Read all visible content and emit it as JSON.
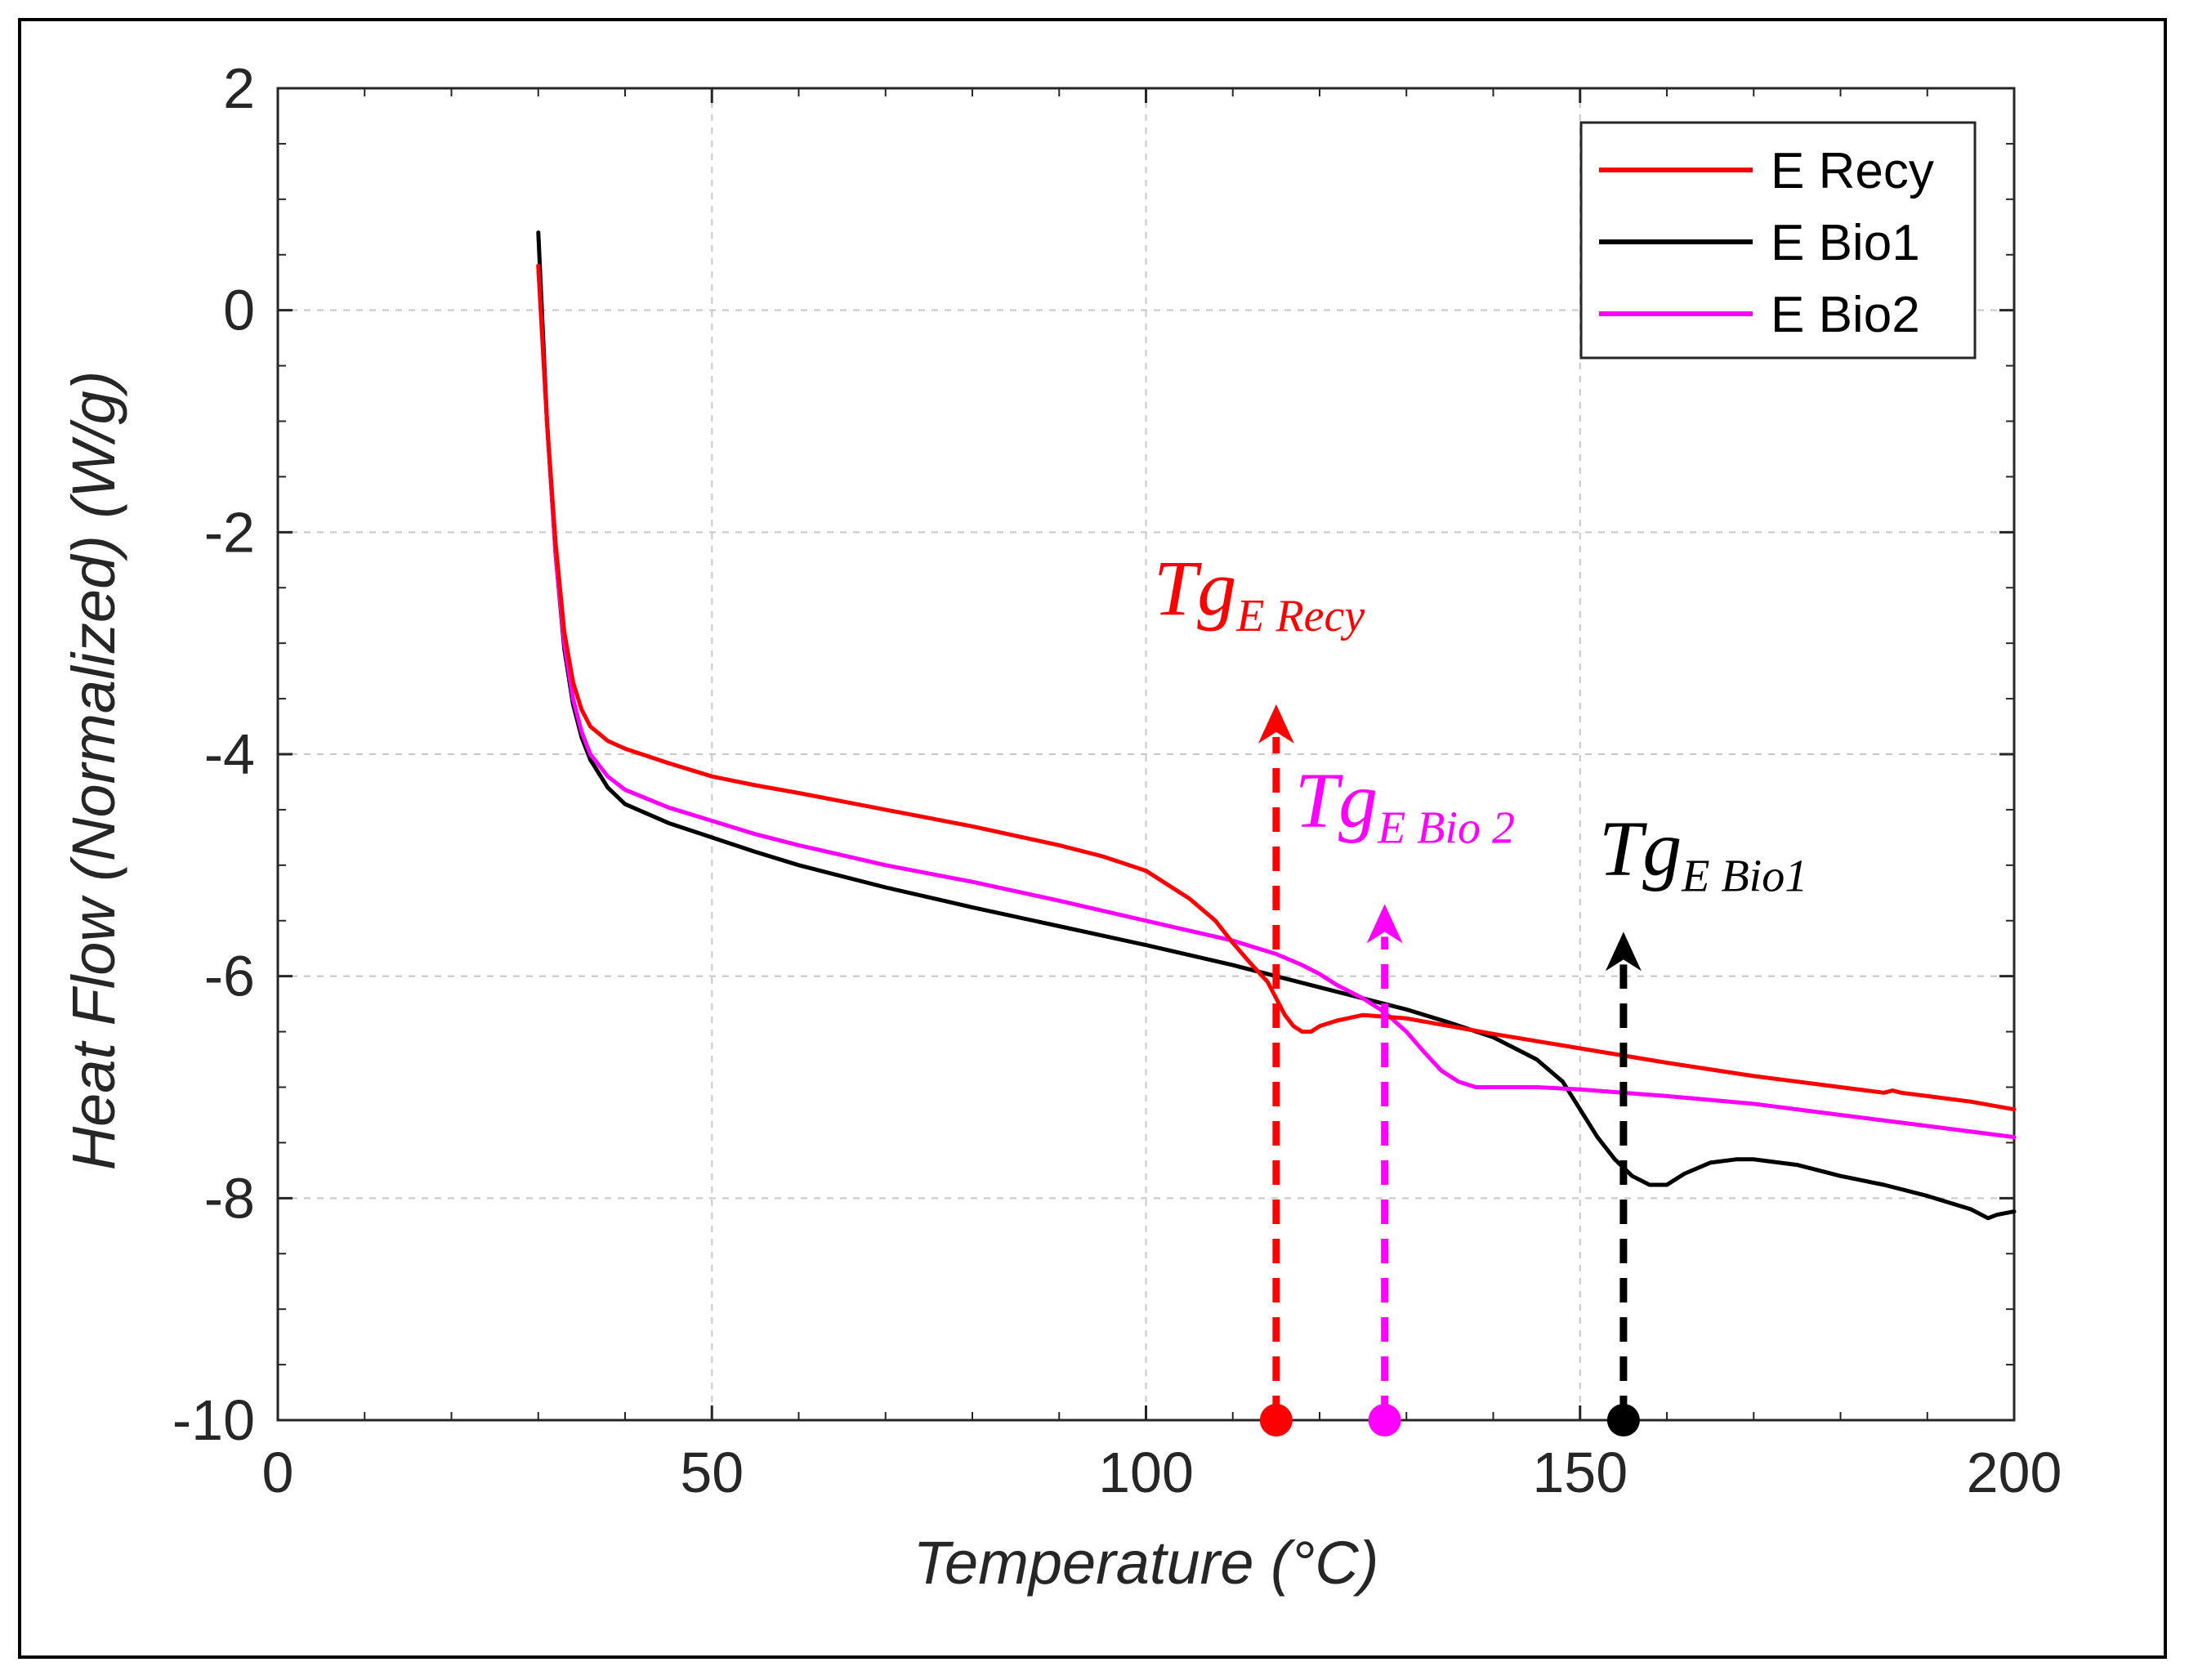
{
  "chart_data": {
    "type": "line",
    "title": "",
    "xlabel": "Temperature (°C)",
    "ylabel": "Heat Flow (Normalized) (W/g)",
    "xlim": [
      0,
      200
    ],
    "ylim": [
      -10,
      2
    ],
    "xticks": [
      0,
      50,
      100,
      150,
      200
    ],
    "yticks": [
      -10,
      -8,
      -6,
      -4,
      -2,
      0,
      2
    ],
    "xtick_labels": [
      "0",
      "50",
      "100",
      "150",
      "200"
    ],
    "ytick_labels": [
      "-10",
      "-8",
      "-6",
      "-4",
      "-2",
      "0",
      "2"
    ],
    "grid": true,
    "legend_position": "top-right",
    "series": [
      {
        "name": "E Recy",
        "color": "#ff0000",
        "x": [
          30,
          31,
          32,
          33,
          34,
          35,
          36,
          38,
          40,
          45,
          50,
          55,
          60,
          70,
          80,
          90,
          95,
          100,
          105,
          108,
          110,
          112,
          114,
          115,
          116,
          117,
          118,
          119,
          120,
          122,
          125,
          130,
          135,
          140,
          150,
          160,
          170,
          180,
          185,
          186,
          187,
          190,
          195,
          200
        ],
        "y": [
          0.4,
          -1.0,
          -2.1,
          -2.9,
          -3.35,
          -3.6,
          -3.75,
          -3.88,
          -3.95,
          -4.08,
          -4.2,
          -4.28,
          -4.35,
          -4.5,
          -4.65,
          -4.82,
          -4.92,
          -5.05,
          -5.3,
          -5.5,
          -5.7,
          -5.88,
          -6.05,
          -6.2,
          -6.35,
          -6.45,
          -6.5,
          -6.5,
          -6.45,
          -6.4,
          -6.35,
          -6.38,
          -6.45,
          -6.52,
          -6.65,
          -6.78,
          -6.9,
          -7.0,
          -7.05,
          -7.03,
          -7.05,
          -7.08,
          -7.13,
          -7.2
        ]
      },
      {
        "name": "E Bio1",
        "color": "#000000",
        "x": [
          30,
          31,
          32,
          33,
          34,
          35,
          36,
          38,
          40,
          45,
          50,
          55,
          60,
          70,
          80,
          90,
          100,
          110,
          115,
          120,
          125,
          130,
          135,
          140,
          145,
          148,
          150,
          152,
          154,
          156,
          158,
          160,
          162,
          165,
          168,
          170,
          175,
          180,
          185,
          190,
          195,
          197,
          198,
          200
        ],
        "y": [
          0.7,
          -1.0,
          -2.2,
          -3.05,
          -3.55,
          -3.85,
          -4.05,
          -4.3,
          -4.45,
          -4.62,
          -4.75,
          -4.88,
          -5.0,
          -5.2,
          -5.38,
          -5.55,
          -5.72,
          -5.9,
          -6.0,
          -6.1,
          -6.2,
          -6.3,
          -6.42,
          -6.55,
          -6.75,
          -6.95,
          -7.2,
          -7.45,
          -7.65,
          -7.8,
          -7.88,
          -7.88,
          -7.78,
          -7.68,
          -7.65,
          -7.65,
          -7.7,
          -7.8,
          -7.88,
          -7.98,
          -8.1,
          -8.18,
          -8.15,
          -8.12
        ]
      },
      {
        "name": "E Bio2",
        "color": "#ff00ff",
        "x": [
          30,
          31,
          32,
          33,
          34,
          35,
          36,
          38,
          40,
          45,
          50,
          55,
          60,
          70,
          80,
          90,
          100,
          110,
          115,
          118,
          120,
          122,
          125,
          127,
          128,
          130,
          132,
          134,
          136,
          138,
          140,
          145,
          150,
          160,
          170,
          180,
          190,
          200
        ],
        "y": [
          0.4,
          -1.0,
          -2.2,
          -3.0,
          -3.5,
          -3.8,
          -4.0,
          -4.2,
          -4.32,
          -4.48,
          -4.6,
          -4.72,
          -4.82,
          -5.0,
          -5.15,
          -5.32,
          -5.5,
          -5.68,
          -5.8,
          -5.9,
          -5.98,
          -6.08,
          -6.2,
          -6.3,
          -6.36,
          -6.5,
          -6.68,
          -6.85,
          -6.95,
          -7.0,
          -7.0,
          -7.0,
          -7.02,
          -7.08,
          -7.15,
          -7.25,
          -7.35,
          -7.45
        ]
      }
    ],
    "annotations": [
      {
        "label_main": "Tg",
        "label_sub": "E Recy",
        "x": 115,
        "y_start": -10,
        "y_end": -3.55,
        "color": "#ff0000"
      },
      {
        "label_main": "Tg",
        "label_sub": "E Bio 2",
        "x": 127.5,
        "y_start": -10,
        "y_end": -5.35,
        "color": "#ff00ff"
      },
      {
        "label_main": "Tg",
        "label_sub": "E Bio1",
        "x": 155,
        "y_start": -10,
        "y_end": -5.6,
        "color": "#000000"
      }
    ]
  }
}
